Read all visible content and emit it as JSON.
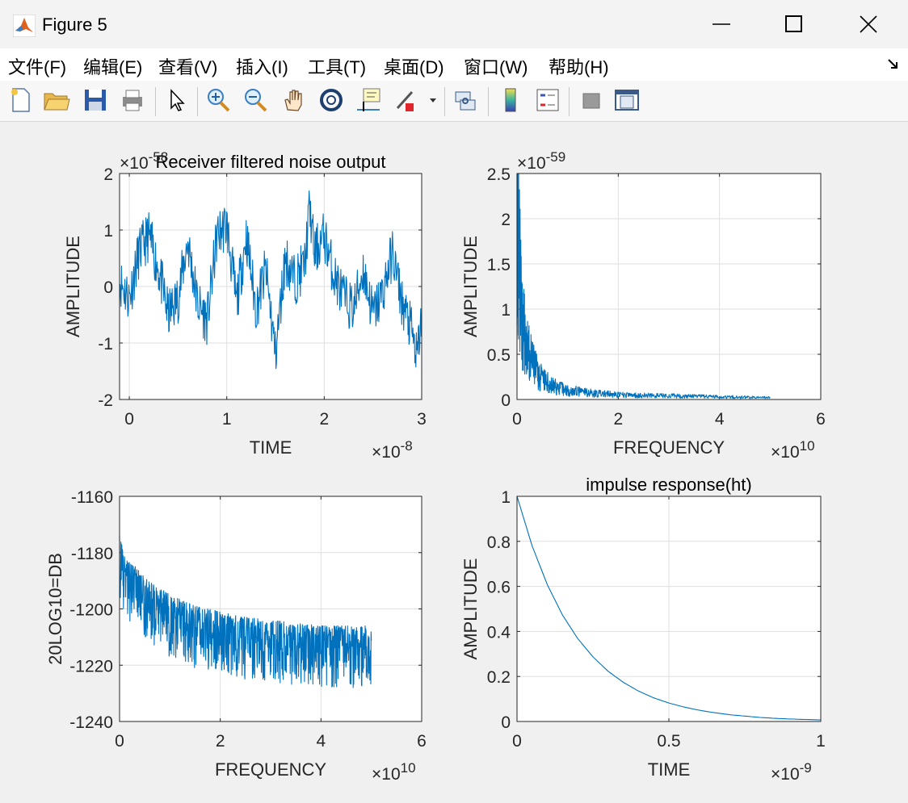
{
  "window": {
    "title": "Figure 5",
    "icon": "matlab-logo-icon"
  },
  "menu": [
    "文件(F)",
    "编辑(E)",
    "查看(V)",
    "插入(I)",
    "工具(T)",
    "桌面(D)",
    "窗口(W)",
    "帮助(H)"
  ],
  "toolbar": {
    "buttons": [
      "new-figure-icon",
      "open-folder-icon",
      "save-icon",
      "print-icon",
      "pointer-icon",
      "zoom-in-icon",
      "zoom-out-icon",
      "pan-hand-icon",
      "rotate-3d-icon",
      "data-cursor-icon",
      "brush-icon",
      "link-plot-icon",
      "colorbar-icon",
      "legend-icon",
      "hide-plot-tools-icon",
      "show-plot-tools-icon"
    ]
  },
  "chart_data": [
    {
      "type": "line",
      "title": "Receiver filtered noise output",
      "xlabel": "TIME",
      "ylabel": "AMPLITUDE",
      "x_exponent": "×10-8",
      "y_exponent": "×10-58",
      "xlim": [
        -0.1,
        3.0
      ],
      "ylim": [
        -2,
        2
      ],
      "xticks": [
        "0",
        "1",
        "2",
        "3"
      ],
      "yticks": [
        "-2",
        "-1",
        "0",
        "1",
        "2"
      ],
      "grid": true,
      "color": "#0072bd",
      "series": [
        {
          "x": [
            -0.1,
            0.0,
            0.1,
            0.2,
            0.3,
            0.4,
            0.5,
            0.6,
            0.7,
            0.8,
            0.9,
            1.0,
            1.1,
            1.2,
            1.3,
            1.4,
            1.5,
            1.6,
            1.7,
            1.8,
            1.85,
            1.9,
            2.0,
            2.1,
            2.2,
            2.3,
            2.4,
            2.5,
            2.6,
            2.7,
            2.8,
            2.9,
            2.95,
            3.0
          ],
          "y": [
            0.1,
            -0.2,
            0.6,
            0.9,
            0.3,
            -0.5,
            -0.2,
            0.8,
            -0.3,
            -0.6,
            0.9,
            1.1,
            -0.3,
            0.9,
            -0.4,
            0.3,
            -1.2,
            0.5,
            0.1,
            0.4,
            1.4,
            0.6,
            0.9,
            0.2,
            -0.2,
            -0.4,
            0.3,
            -0.5,
            -0.1,
            0.6,
            -0.3,
            -0.8,
            -1.3,
            -0.5
          ]
        }
      ]
    },
    {
      "type": "line",
      "title": "",
      "xlabel": "FREQUENCY",
      "ylabel": "AMPLITUDE",
      "x_exponent": "×1010",
      "y_exponent": "×10-59",
      "xlim": [
        0,
        6
      ],
      "ylim": [
        0,
        2.5
      ],
      "xticks": [
        "0",
        "2",
        "4",
        "6"
      ],
      "yticks": [
        "0",
        "0.5",
        "1",
        "1.5",
        "2",
        "2.5"
      ],
      "grid": true,
      "color": "#0072bd",
      "series": [
        {
          "x": [
            0.0,
            0.02,
            0.05,
            0.1,
            0.15,
            0.2,
            0.3,
            0.4,
            0.5,
            0.7,
            1.0,
            1.5,
            2.0,
            3.0,
            4.0,
            5.0
          ],
          "y": [
            2.35,
            1.8,
            1.4,
            0.9,
            0.7,
            0.55,
            0.4,
            0.3,
            0.22,
            0.15,
            0.1,
            0.07,
            0.05,
            0.04,
            0.03,
            0.02
          ]
        }
      ]
    },
    {
      "type": "line",
      "title": "",
      "xlabel": "FREQUENCY",
      "ylabel": "20LOG10=DB",
      "x_exponent": "×1010",
      "xlim": [
        0,
        6
      ],
      "ylim": [
        -1240,
        -1160
      ],
      "xticks": [
        "0",
        "2",
        "4",
        "6"
      ],
      "yticks": [
        "-1240",
        "-1220",
        "-1200",
        "-1180",
        "-1160"
      ],
      "grid": true,
      "color": "#0072bd",
      "series": [
        {
          "x": [
            0.0,
            0.1,
            0.25,
            0.5,
            0.75,
            1.0,
            1.5,
            2.0,
            2.5,
            3.0,
            3.5,
            4.0,
            4.5,
            5.0
          ],
          "y": [
            -1180,
            -1186,
            -1190,
            -1194,
            -1198,
            -1201,
            -1205,
            -1207,
            -1209,
            -1210,
            -1211,
            -1212,
            -1212,
            -1212
          ]
        }
      ]
    },
    {
      "type": "line",
      "title": "impulse response(ht)",
      "xlabel": "TIME",
      "ylabel": "AMPLITUDE",
      "x_exponent": "×10-9",
      "xlim": [
        0,
        1
      ],
      "ylim": [
        0,
        1
      ],
      "xticks": [
        "0",
        "0.5",
        "1"
      ],
      "yticks": [
        "0",
        "0.2",
        "0.4",
        "0.6",
        "0.8",
        "1"
      ],
      "grid": true,
      "color": "#0072bd",
      "series": [
        {
          "x": [
            0.0,
            0.05,
            0.1,
            0.15,
            0.2,
            0.25,
            0.3,
            0.35,
            0.4,
            0.45,
            0.5,
            0.55,
            0.6,
            0.65,
            0.7,
            0.75,
            0.8,
            0.85,
            0.9,
            0.95,
            1.0
          ],
          "y": [
            1.0,
            0.779,
            0.607,
            0.472,
            0.368,
            0.287,
            0.223,
            0.174,
            0.135,
            0.105,
            0.082,
            0.064,
            0.05,
            0.039,
            0.03,
            0.024,
            0.018,
            0.014,
            0.011,
            0.009,
            0.007
          ]
        }
      ]
    }
  ]
}
